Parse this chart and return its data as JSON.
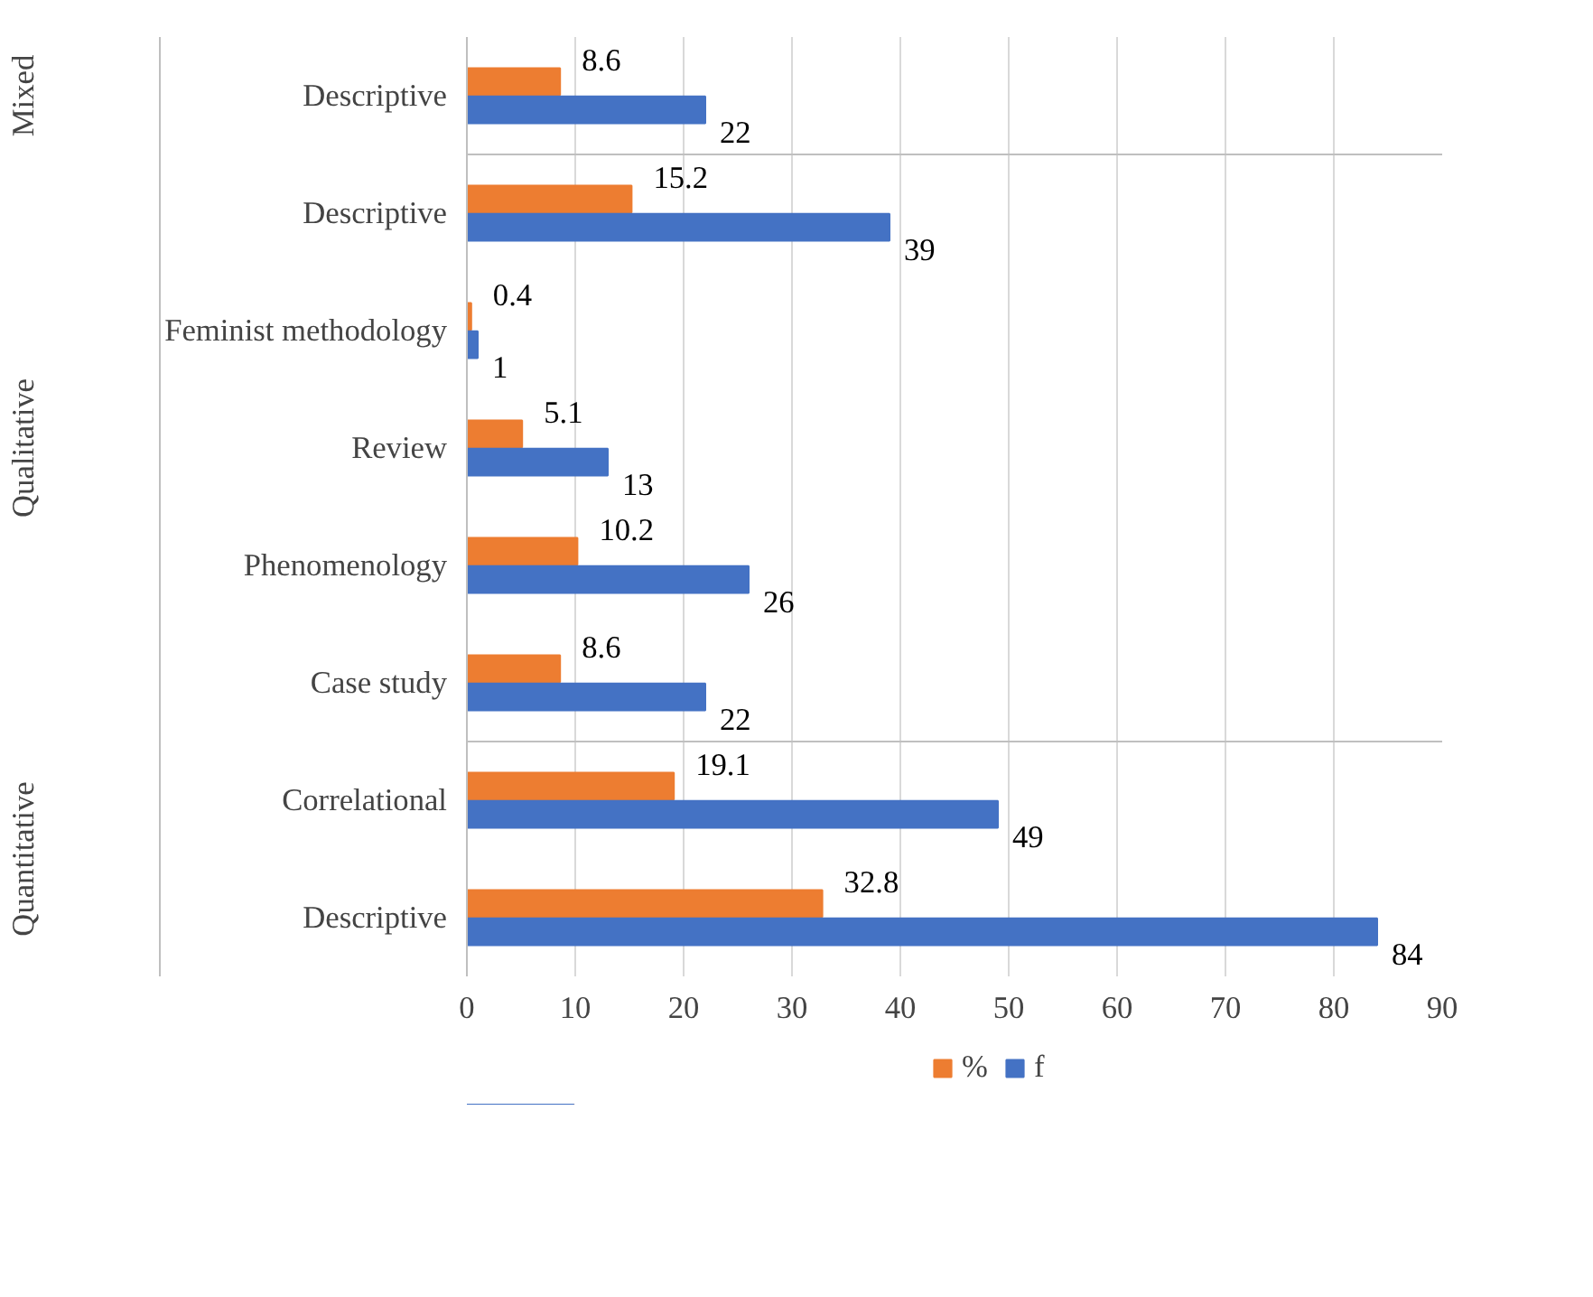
{
  "chart_data": {
    "type": "bar",
    "orientation": "horizontal",
    "categories": [
      "Descriptive",
      "Descriptive",
      "Feminist methodology",
      "Review",
      "Phenomenology",
      "Case study",
      "Correlational",
      "Descriptive"
    ],
    "series": [
      {
        "name": "%",
        "color": "#ed7d31",
        "values": [
          8.6,
          15.2,
          0.4,
          5.1,
          10.2,
          8.6,
          19.1,
          32.8
        ]
      },
      {
        "name": "f",
        "color": "#4472c4",
        "values": [
          22,
          39,
          1,
          13,
          26,
          22,
          49,
          84
        ]
      }
    ],
    "annotations": [
      "Mixed",
      "Qualitative",
      "Quantitative"
    ],
    "xlim": [
      0,
      90
    ],
    "xticks": [
      0,
      10,
      20,
      30,
      40,
      50,
      60,
      70,
      80,
      90
    ],
    "grid": "x",
    "legend": "bottom",
    "data_labels": true
  }
}
